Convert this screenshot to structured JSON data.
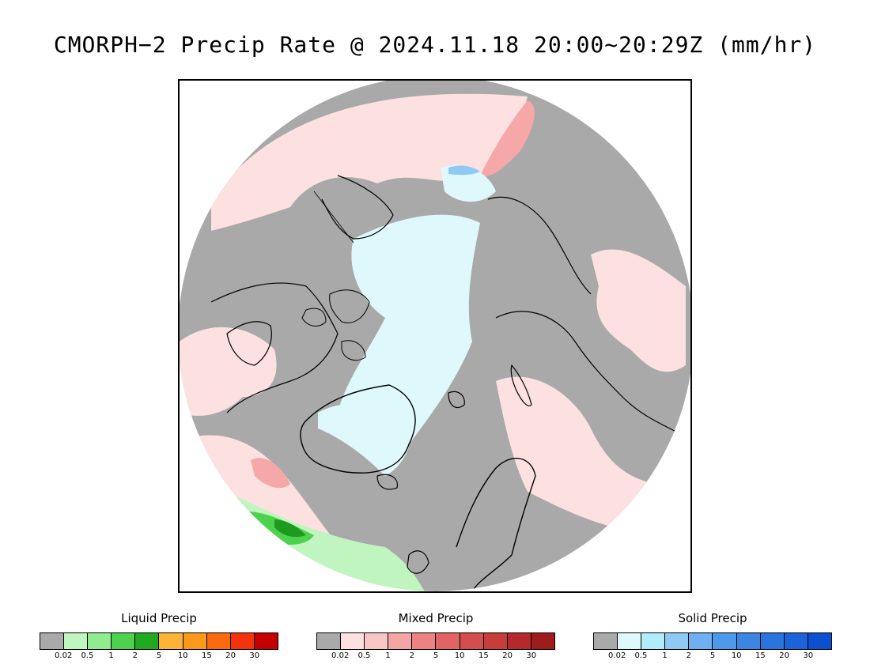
{
  "title": "CMORPH−2 Precip Rate @ 2024.11.18 20:00~20:29Z (mm/hr)",
  "map": {
    "projection": "polar-stereographic-north",
    "colors": {
      "no_precip": "#a9a9a9",
      "mixed_light": "#fde0e0",
      "mixed_mid": "#f6a8a8",
      "solid_light": "#dff8fc",
      "solid_mid": "#8fcaf5",
      "liquid_light": "#c0f5bf",
      "liquid_mid": "#4ed24e",
      "liquid_dark": "#1e9a1e",
      "coastline": "#000000"
    }
  },
  "legends": [
    {
      "title": "Liquid Precip",
      "colors": [
        "#a9a9a9",
        "#c0f5bf",
        "#90ec8f",
        "#4ed24e",
        "#22a922",
        "#fbb437",
        "#fb9a1a",
        "#fb6a0c",
        "#f5330a",
        "#c40000"
      ],
      "labels": [
        "0.02",
        "0.5",
        "1",
        "2",
        "5",
        "10",
        "15",
        "20",
        "30"
      ]
    },
    {
      "title": "Mixed Precip",
      "colors": [
        "#a9a9a9",
        "#fde0e0",
        "#f9c6c6",
        "#f4a5a5",
        "#ec8282",
        "#e06464",
        "#d54e4e",
        "#c83c3c",
        "#b42a2a",
        "#9e1c1c"
      ],
      "labels": [
        "0.02",
        "0.5",
        "1",
        "2",
        "5",
        "10",
        "15",
        "20",
        "30"
      ]
    },
    {
      "title": "Solid Precip",
      "colors": [
        "#a9a9a9",
        "#dff8fc",
        "#b0ecfa",
        "#8fcaf5",
        "#6fb0f2",
        "#4c9ae9",
        "#3a86e2",
        "#2a74df",
        "#1a63da",
        "#0b51cf"
      ],
      "labels": [
        "0.02",
        "0.5",
        "1",
        "2",
        "5",
        "10",
        "15",
        "20",
        "30"
      ]
    }
  ]
}
